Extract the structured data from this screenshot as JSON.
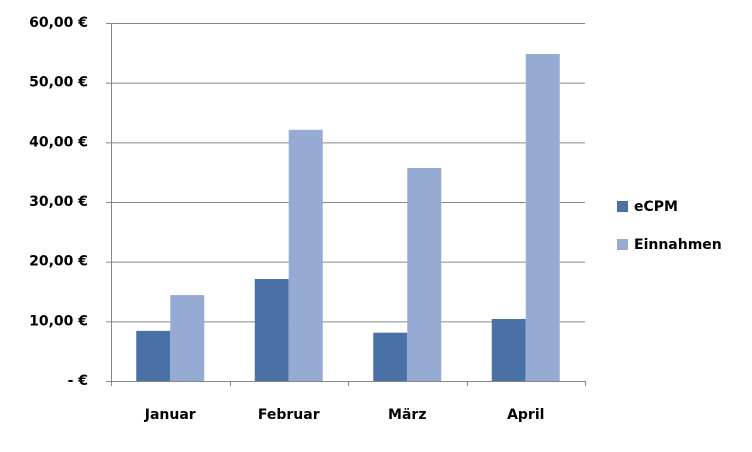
{
  "chart_data": {
    "type": "bar",
    "categories": [
      "Januar",
      "Februar",
      "März",
      "April"
    ],
    "series": [
      {
        "name": "eCPM",
        "color": "#4a71a6",
        "values": [
          8.4,
          17.1,
          8.1,
          10.4
        ]
      },
      {
        "name": "Einnahmen",
        "color": "#95abd3",
        "values": [
          14.4,
          42.1,
          35.7,
          54.8
        ]
      }
    ],
    "ylim": [
      0,
      60
    ],
    "yticks": [
      {
        "value": 0,
        "label": "-   €"
      },
      {
        "value": 10,
        "label": "10,00 €"
      },
      {
        "value": 20,
        "label": "20,00 €"
      },
      {
        "value": 30,
        "label": "30,00 €"
      },
      {
        "value": 40,
        "label": "40,00 €"
      },
      {
        "value": 50,
        "label": "50,00 €"
      },
      {
        "value": 60,
        "label": "60,00 €"
      }
    ],
    "grid": true,
    "legend": "right"
  }
}
